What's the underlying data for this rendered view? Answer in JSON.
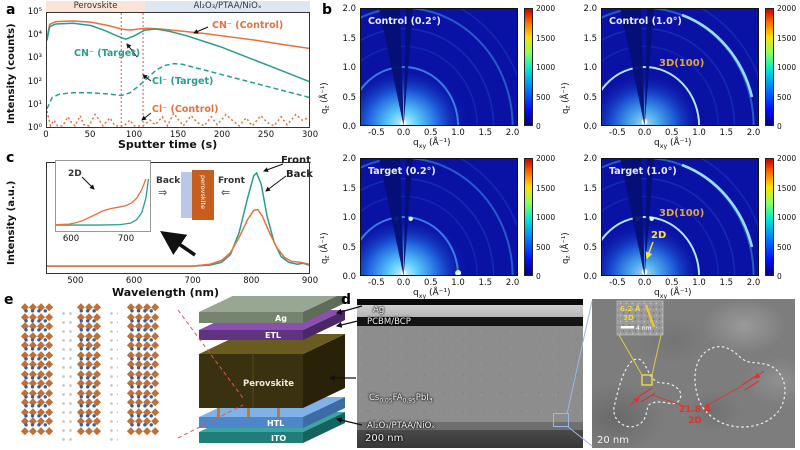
{
  "figure": {
    "background": "#ffffff"
  },
  "panels": {
    "a": {
      "label": "a",
      "ylabel": "Intensity (counts)",
      "xlabel": "Sputter time (s)",
      "yticks": [
        "10⁵",
        "10⁴",
        "10³",
        "10²",
        "10¹",
        "10⁰"
      ],
      "xticks": [
        "0",
        "50",
        "100",
        "150",
        "200",
        "250",
        "300"
      ],
      "bands": [
        {
          "label": "Perovskite",
          "color": "#fbe4d7"
        },
        {
          "label": "Al₂O₃/PTAA/NiOₓ",
          "color": "#dde7f3"
        }
      ],
      "ann": {
        "cn_control": "CN⁻ (Control)",
        "cn_target": "CN⁻ (Target)",
        "cl_target": "Cl⁻ (Target)",
        "cl_control": "Cl⁻ (Control)"
      }
    },
    "b": {
      "label": "b",
      "yticks": [
        "2.0",
        "1.5",
        "1.0",
        "0.5",
        "0.0"
      ],
      "xticks": [
        "-0.5",
        "0.0",
        "0.5",
        "1.0",
        "1.5",
        "2.0"
      ],
      "cbar_ticks": [
        "2000",
        "1500",
        "1000",
        "500",
        "0"
      ],
      "qz_label": {
        "base": "q",
        "sub": "z",
        "unit": " (Å⁻¹)"
      },
      "qxy_label": {
        "base": "q",
        "sub": "xy",
        "unit": " (Å⁻¹)"
      },
      "maps": [
        {
          "title": "Control (0.2°)",
          "bright": false,
          "label3d": "",
          "label2d": "",
          "spots": [
            [
              0,
              0.05
            ]
          ]
        },
        {
          "title": "Control (1.0°)",
          "bright": true,
          "label3d": "3D(100)",
          "label2d": "",
          "spots": [
            [
              0,
              0.07
            ]
          ]
        },
        {
          "title": "Target (0.2°)",
          "bright": false,
          "label3d": "",
          "label2d": "",
          "spots": [
            [
              0,
              0.05
            ],
            [
              1.0,
              0.05
            ],
            [
              -0.13,
              0.97
            ],
            [
              0.13,
              0.97
            ]
          ]
        },
        {
          "title": "Target (1.0°)",
          "bright": true,
          "label3d": "3D(100)",
          "label2d": "2D",
          "spots": [
            [
              0,
              0.07
            ],
            [
              -0.13,
              0.97
            ],
            [
              0.13,
              0.97
            ]
          ]
        }
      ]
    },
    "c": {
      "label": "c",
      "ylabel": "Intensity (a.u.)",
      "xlabel": "Wavelength (nm)",
      "xticks": [
        "500",
        "600",
        "700",
        "800",
        "900"
      ],
      "front": "Front",
      "back": "Back",
      "inset": {
        "ticks": [
          "600",
          "700"
        ],
        "label_2d": "2D"
      },
      "schematic": {
        "back": "Back",
        "front": "Front",
        "film": "perovskite"
      }
    },
    "d": {
      "label": "d",
      "layer_ag": "Ag",
      "layer_pcbm": "PCBM/BCP",
      "formula": {
        "p1": "Cs",
        "s1": "0.05",
        "p2": "FA",
        "s2": "0.95",
        "p3": "PbI",
        "s3": "3"
      },
      "layer_bottom": "Al₂O₃/PTAA/NiOₓ",
      "scale_main": "200 nm",
      "scale_hr": "20 nm",
      "hr": {
        "d2": "21.8 Å",
        "tag2": "2D",
        "d3": "6.2 Å",
        "tag3": "3D",
        "scale_inset": "4 nm"
      }
    },
    "e": {
      "label": "e",
      "stack": {
        "ag": "Ag",
        "etl": "ETL",
        "pvk": "Perovskite",
        "htl": "HTL",
        "ito": "ITO"
      },
      "crystal": {
        "columns": [
          {
            "units": 4,
            "rows": 13
          },
          {
            "units": 3,
            "rows": 13
          },
          {
            "units": 4,
            "rows": 13
          }
        ]
      }
    }
  },
  "colors": {
    "orange": "#e7703f",
    "teal": "#2a9d8f",
    "guide_red": "#e05555",
    "map_bg": "#0a12a6",
    "annot_gold": "#e2a43c",
    "annot_yellow": "#ffe14d",
    "red_annot": "#e03030",
    "stack_ag": "#98a694",
    "stack_etl": "#7b3fa0",
    "stack_pvk": "#3a3110",
    "stack_htl": "#5b8fd4",
    "stack_ito": "#2a8d87"
  },
  "chart_data": [
    {
      "id": "sims_depth_profile",
      "type": "line",
      "title": "",
      "xlabel": "Sputter time (s)",
      "ylabel": "Intensity (counts)",
      "x_range": [
        0,
        300
      ],
      "y_scale": "log10",
      "y_log_range": [
        0,
        5
      ],
      "guides_x": [
        85,
        110
      ],
      "series": [
        {
          "name": "CN⁻ (Control)",
          "color": "#e7703f",
          "style": "solid",
          "points": [
            [
              0,
              3.9
            ],
            [
              3,
              4.5
            ],
            [
              10,
              4.62
            ],
            [
              30,
              4.65
            ],
            [
              50,
              4.6
            ],
            [
              70,
              4.45
            ],
            [
              85,
              4.3
            ],
            [
              95,
              4.25
            ],
            [
              105,
              4.3
            ],
            [
              115,
              4.33
            ],
            [
              130,
              4.3
            ],
            [
              150,
              4.22
            ],
            [
              180,
              4.1
            ],
            [
              210,
              3.95
            ],
            [
              240,
              3.8
            ],
            [
              270,
              3.62
            ],
            [
              300,
              3.45
            ]
          ]
        },
        {
          "name": "CN⁻ (Target)",
          "color": "#2a9d8f",
          "style": "solid",
          "points": [
            [
              0,
              3.8
            ],
            [
              3,
              4.4
            ],
            [
              10,
              4.52
            ],
            [
              30,
              4.55
            ],
            [
              50,
              4.45
            ],
            [
              65,
              4.25
            ],
            [
              80,
              4.0
            ],
            [
              90,
              3.85
            ],
            [
              100,
              4.0
            ],
            [
              112,
              4.25
            ],
            [
              125,
              4.3
            ],
            [
              140,
              4.2
            ],
            [
              160,
              4.0
            ],
            [
              180,
              3.75
            ],
            [
              200,
              3.5
            ],
            [
              220,
              3.2
            ],
            [
              240,
              2.9
            ],
            [
              260,
              2.6
            ],
            [
              280,
              2.3
            ],
            [
              300,
              2.0
            ]
          ]
        },
        {
          "name": "Cl⁻ (Target)",
          "color": "#2a9d8f",
          "style": "dashed",
          "points": [
            [
              0,
              0.8
            ],
            [
              6,
              1.3
            ],
            [
              15,
              1.45
            ],
            [
              30,
              1.5
            ],
            [
              50,
              1.5
            ],
            [
              70,
              1.45
            ],
            [
              85,
              1.38
            ],
            [
              95,
              1.5
            ],
            [
              105,
              1.8
            ],
            [
              115,
              2.15
            ],
            [
              125,
              2.5
            ],
            [
              135,
              2.7
            ],
            [
              145,
              2.78
            ],
            [
              155,
              2.75
            ],
            [
              170,
              2.6
            ],
            [
              190,
              2.4
            ],
            [
              210,
              2.2
            ],
            [
              230,
              2.0
            ],
            [
              250,
              1.8
            ],
            [
              270,
              1.6
            ],
            [
              285,
              1.45
            ],
            [
              300,
              1.3
            ]
          ]
        },
        {
          "name": "Cl⁻ (Control)",
          "color": "#e7703f",
          "style": "dotted",
          "points": [
            [
              0,
              0.7
            ],
            [
              4,
              0.05
            ],
            [
              8,
              0.3
            ],
            [
              12,
              0.05
            ],
            [
              18,
              0.05
            ],
            [
              24,
              0.45
            ],
            [
              28,
              0.2
            ],
            [
              32,
              0.05
            ],
            [
              38,
              0.5
            ],
            [
              42,
              0.1
            ],
            [
              48,
              0.05
            ],
            [
              55,
              0.55
            ],
            [
              60,
              0.3
            ],
            [
              64,
              0.05
            ],
            [
              72,
              0.4
            ],
            [
              78,
              0.05
            ],
            [
              88,
              0.05
            ],
            [
              95,
              0.3
            ],
            [
              100,
              0.05
            ],
            [
              110,
              0.05
            ],
            [
              118,
              0.3
            ],
            [
              124,
              0.1
            ],
            [
              132,
              0.45
            ],
            [
              138,
              0.05
            ],
            [
              145,
              0.6
            ],
            [
              150,
              0.35
            ],
            [
              156,
              0.05
            ],
            [
              165,
              0.5
            ],
            [
              172,
              0.2
            ],
            [
              180,
              0.05
            ],
            [
              188,
              0.45
            ],
            [
              195,
              0.1
            ],
            [
              205,
              0.55
            ],
            [
              212,
              0.3
            ],
            [
              220,
              0.05
            ],
            [
              228,
              0.4
            ],
            [
              235,
              0.05
            ],
            [
              245,
              0.5
            ],
            [
              252,
              0.2
            ],
            [
              260,
              0.05
            ],
            [
              268,
              0.45
            ],
            [
              275,
              0.1
            ],
            [
              285,
              0.55
            ],
            [
              292,
              0.3
            ],
            [
              300,
              0.4
            ]
          ]
        }
      ]
    },
    {
      "id": "pl_spectra",
      "type": "line",
      "xlabel": "Wavelength (nm)",
      "ylabel": "Intensity (a.u.)",
      "x_range": [
        450,
        900
      ],
      "series": [
        {
          "name": "Front",
          "color": "#2a9d8f",
          "style": "solid",
          "points": [
            [
              450,
              0.03
            ],
            [
              550,
              0.03
            ],
            [
              650,
              0.03
            ],
            [
              700,
              0.03
            ],
            [
              730,
              0.04
            ],
            [
              750,
              0.07
            ],
            [
              765,
              0.15
            ],
            [
              780,
              0.38
            ],
            [
              795,
              0.75
            ],
            [
              805,
              0.97
            ],
            [
              810,
              1.0
            ],
            [
              818,
              0.88
            ],
            [
              828,
              0.55
            ],
            [
              840,
              0.28
            ],
            [
              852,
              0.13
            ],
            [
              865,
              0.07
            ],
            [
              880,
              0.05
            ],
            [
              890,
              0.06
            ],
            [
              900,
              0.04
            ]
          ]
        },
        {
          "name": "Back",
          "color": "#e7703f",
          "style": "solid",
          "points": [
            [
              450,
              0.03
            ],
            [
              550,
              0.03
            ],
            [
              650,
              0.03
            ],
            [
              700,
              0.03
            ],
            [
              730,
              0.05
            ],
            [
              750,
              0.09
            ],
            [
              765,
              0.17
            ],
            [
              780,
              0.33
            ],
            [
              795,
              0.52
            ],
            [
              805,
              0.61
            ],
            [
              812,
              0.62
            ],
            [
              820,
              0.55
            ],
            [
              832,
              0.38
            ],
            [
              845,
              0.22
            ],
            [
              858,
              0.12
            ],
            [
              870,
              0.08
            ],
            [
              885,
              0.07
            ],
            [
              900,
              0.05
            ]
          ]
        }
      ],
      "inset": {
        "x_range": [
          565,
          748
        ],
        "xticks": [
          600,
          700
        ],
        "annotation": "2D",
        "series": [
          {
            "name": "Front",
            "color": "#2a9d8f",
            "points": [
              [
                565,
                0.04
              ],
              [
                650,
                0.04
              ],
              [
                690,
                0.05
              ],
              [
                710,
                0.08
              ],
              [
                722,
                0.15
              ],
              [
                732,
                0.3
              ],
              [
                740,
                0.6
              ],
              [
                745,
                1.0
              ]
            ]
          },
          {
            "name": "Back",
            "color": "#e7703f",
            "points": [
              [
                565,
                0.05
              ],
              [
                590,
                0.06
              ],
              [
                605,
                0.09
              ],
              [
                620,
                0.15
              ],
              [
                640,
                0.25
              ],
              [
                655,
                0.33
              ],
              [
                670,
                0.38
              ],
              [
                685,
                0.41
              ],
              [
                700,
                0.44
              ],
              [
                712,
                0.5
              ],
              [
                722,
                0.6
              ],
              [
                732,
                0.78
              ],
              [
                740,
                1.0
              ]
            ]
          }
        ]
      }
    },
    {
      "id": "giwaxs_maps",
      "type": "heatmap",
      "maps": [
        "Control (0.2°)",
        "Control (1.0°)",
        "Target (0.2°)",
        "Target (1.0°)"
      ],
      "xlabel": "q_xy (Å⁻¹)",
      "ylabel": "q_z (Å⁻¹)",
      "x_range": [
        -0.8,
        2.1
      ],
      "y_range": [
        0,
        2.0
      ],
      "colorbar_range": [
        0,
        2000
      ],
      "features": [
        "diffuse ring q≈1.0 (3D(100))",
        "bright low-q spot (2D) in Target (1.0°)"
      ]
    }
  ]
}
